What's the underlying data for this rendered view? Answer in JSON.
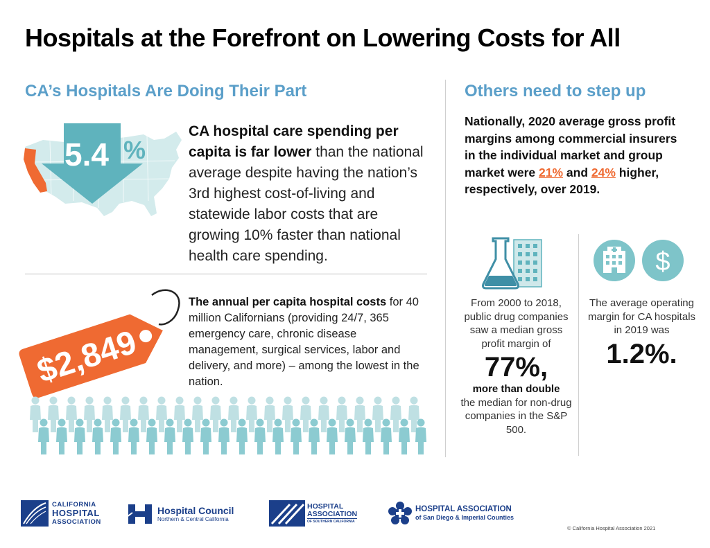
{
  "title": "Hospitals at the Forefront on Lowering Costs for All",
  "left": {
    "heading": "CA’s Hospitals Are Doing Their Part",
    "stat1": {
      "value": "5.4",
      "unit": "%"
    },
    "text1_bold": "CA hospital care spending per capita is far lower",
    "text1_rest": " than the national average despite having the nation’s 3rd highest cost-of-living and statewide labor costs that are growing 10% faster than national health care spending.",
    "tag_value": "$2,849",
    "text2_bold": "The annual per capita hospital costs",
    "text2_rest": " for 40 million Californians (providing 24/7, 365 emergency care, chronic disease management, surgical services, labor and delivery, and more) – among the lowest in the nation."
  },
  "right": {
    "heading": "Others need to step up",
    "text3_a": "Nationally, 2020 average gross profit margins among commercial insurers in the individual market and group market were ",
    "text3_pct1": "21%",
    "text3_b": " and ",
    "text3_pct2": "24%",
    "text3_c": " higher, respectively, over 2019.",
    "col1_pre": "From 2000 to 2018, public drug companies saw a median gross profit margin of",
    "col1_big": "77%,",
    "col1_strong": "more than double",
    "col1_post": "the median for non-drug companies in the S&P 500.",
    "col2_pre": "The average operating margin for CA hospitals in 2019 was",
    "col2_big": "1.2%."
  },
  "footer": {
    "logo1_line1": "CALIFORNIA",
    "logo1_line2": "HOSPITAL",
    "logo1_line3": "ASSOCIATION",
    "logo2_line1": "Hospital Council",
    "logo2_line2": "Northern & Central California",
    "logo3_line1": "HOSPITAL",
    "logo3_line2": "ASSOCIATION",
    "logo3_line3": "OF SOUTHERN CALIFORNIA",
    "logo4_line1": "HOSPITAL ASSOCIATION",
    "logo4_line2": "of San Diego & Imperial Counties",
    "copyright": "© California Hospital Association 2021"
  },
  "colors": {
    "heading_blue": "#5b9fc9",
    "teal": "#5fb3bd",
    "orange": "#ef6a32",
    "light_teal": "#cfe8ea",
    "navy": "#1b3f8a"
  }
}
